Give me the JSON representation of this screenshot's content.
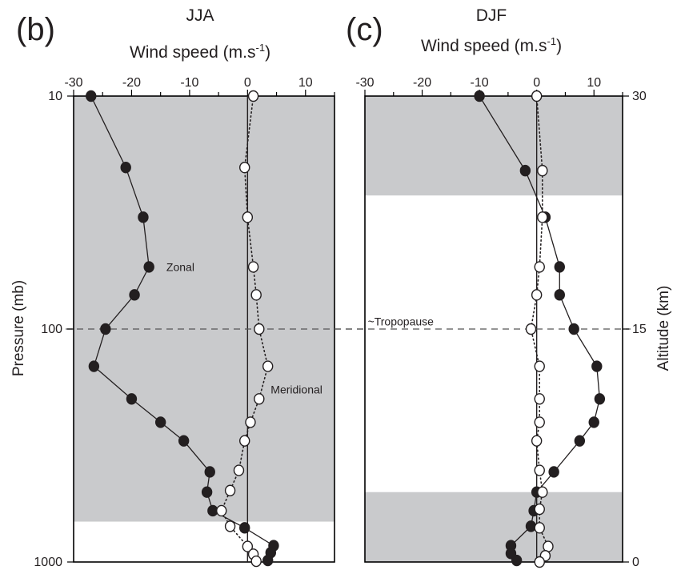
{
  "chart_data": [
    {
      "panel_label": "(b)",
      "type": "line",
      "title": "JJA",
      "xlabel": "Wind speed (m.s-1)",
      "xlabel_text": "Wind speed (m.s",
      "xlabel_sup": "-1",
      "xlabel_close": ")",
      "ylabel": "Pressure (mb)",
      "xlim": [
        -30,
        15
      ],
      "x_ticks": [
        "-30",
        "-20",
        "-10",
        "0",
        "10"
      ],
      "y_scale": "log (pressure)",
      "ylim": [
        1000,
        10
      ],
      "y_ticks_left": [
        "10",
        "100",
        "1000"
      ],
      "shaded_altitude_km": [
        2.6,
        30
      ],
      "tropopause_altitude_km": 15,
      "series": [
        {
          "name": "Zonal",
          "marker": "filled",
          "line": "solid",
          "points": [
            {
              "x": -27,
              "alt": 30
            },
            {
              "x": -21,
              "alt": 25.4
            },
            {
              "x": -18,
              "alt": 22.2
            },
            {
              "x": -17,
              "alt": 19
            },
            {
              "x": -19.5,
              "alt": 17.2
            },
            {
              "x": -24.5,
              "alt": 15
            },
            {
              "x": -26.5,
              "alt": 12.6
            },
            {
              "x": -20,
              "alt": 10.5
            },
            {
              "x": -15,
              "alt": 9
            },
            {
              "x": -11,
              "alt": 7.8
            },
            {
              "x": -6.5,
              "alt": 5.8
            },
            {
              "x": -7,
              "alt": 4.5
            },
            {
              "x": -6,
              "alt": 3.3
            },
            {
              "x": -0.5,
              "alt": 2.2
            },
            {
              "x": 4.5,
              "alt": 1.05
            },
            {
              "x": 4,
              "alt": 0.6
            },
            {
              "x": 3.5,
              "alt": 0.1
            }
          ]
        },
        {
          "name": "Meridional",
          "marker": "open",
          "line": "dotted",
          "points": [
            {
              "x": 1,
              "alt": 30
            },
            {
              "x": -0.5,
              "alt": 25.4
            },
            {
              "x": 0,
              "alt": 22.2
            },
            {
              "x": 1,
              "alt": 19
            },
            {
              "x": 1.5,
              "alt": 17.2
            },
            {
              "x": 2,
              "alt": 15
            },
            {
              "x": 3.5,
              "alt": 12.6
            },
            {
              "x": 2,
              "alt": 10.5
            },
            {
              "x": 0.5,
              "alt": 9
            },
            {
              "x": -0.5,
              "alt": 7.8
            },
            {
              "x": -1.5,
              "alt": 5.9
            },
            {
              "x": -3,
              "alt": 4.6
            },
            {
              "x": -4.5,
              "alt": 3.3
            },
            {
              "x": -3,
              "alt": 2.3
            },
            {
              "x": 0,
              "alt": 1
            },
            {
              "x": 1,
              "alt": 0.5
            },
            {
              "x": 1.5,
              "alt": 0.05
            }
          ]
        }
      ],
      "annotations": [
        {
          "text": "Zonal",
          "x": -14,
          "alt": 19
        },
        {
          "text": "Meridional",
          "x": 4,
          "alt": 11.1
        }
      ]
    },
    {
      "panel_label": "(c)",
      "type": "line",
      "title": "DJF",
      "xlabel": "Wind speed (m.s-1)",
      "xlabel_text": "Wind speed (m.s",
      "xlabel_sup": "-1",
      "xlabel_close": ")",
      "ylabel": "Altitude (km)",
      "xlim": [
        -30,
        15
      ],
      "x_ticks": [
        "-30",
        "-20",
        "-10",
        "0",
        "10"
      ],
      "y_scale": "linear (altitude)",
      "ylim": [
        0,
        30
      ],
      "y_ticks_right": [
        "0",
        "15",
        "30"
      ],
      "shaded_altitude_km": [
        [
          0,
          4.5
        ],
        [
          23.6,
          30
        ]
      ],
      "tropopause_altitude_km": 15,
      "series": [
        {
          "name": "Zonal",
          "marker": "filled",
          "line": "solid",
          "points": [
            {
              "x": -10,
              "alt": 30
            },
            {
              "x": -2,
              "alt": 25.2
            },
            {
              "x": 1.5,
              "alt": 22.2
            },
            {
              "x": 4,
              "alt": 19
            },
            {
              "x": 4,
              "alt": 17.2
            },
            {
              "x": 6.5,
              "alt": 15
            },
            {
              "x": 10.5,
              "alt": 12.6
            },
            {
              "x": 11,
              "alt": 10.5
            },
            {
              "x": 10,
              "alt": 9
            },
            {
              "x": 7.5,
              "alt": 7.8
            },
            {
              "x": 3,
              "alt": 5.8
            },
            {
              "x": 0,
              "alt": 4.5
            },
            {
              "x": -0.5,
              "alt": 3.3
            },
            {
              "x": -1,
              "alt": 2.3
            },
            {
              "x": -4.5,
              "alt": 1.05
            },
            {
              "x": -4.5,
              "alt": 0.55
            },
            {
              "x": -3.5,
              "alt": 0.1
            }
          ]
        },
        {
          "name": "Meridional",
          "marker": "open",
          "line": "dotted",
          "points": [
            {
              "x": 0,
              "alt": 30
            },
            {
              "x": 1,
              "alt": 25.2
            },
            {
              "x": 1,
              "alt": 22.2
            },
            {
              "x": 0.5,
              "alt": 19
            },
            {
              "x": 0,
              "alt": 17.2
            },
            {
              "x": -1,
              "alt": 15
            },
            {
              "x": 0.5,
              "alt": 12.6
            },
            {
              "x": 0.5,
              "alt": 10.5
            },
            {
              "x": 0.5,
              "alt": 9
            },
            {
              "x": 0,
              "alt": 7.8
            },
            {
              "x": 0.5,
              "alt": 5.9
            },
            {
              "x": 1,
              "alt": 4.5
            },
            {
              "x": 0.5,
              "alt": 3.4
            },
            {
              "x": 0.5,
              "alt": 2.2
            },
            {
              "x": 2,
              "alt": 1
            },
            {
              "x": 1.5,
              "alt": 0.4
            },
            {
              "x": 0.5,
              "alt": 0
            }
          ]
        }
      ],
      "annotations": [
        {
          "text": "~Tropopause",
          "x": -29.5,
          "alt": 15.5
        }
      ]
    }
  ],
  "colors": {
    "shade": "#c9cacc",
    "ink": "#231f20",
    "frame": "#000000",
    "marker_open_fill": "#ffffff"
  }
}
